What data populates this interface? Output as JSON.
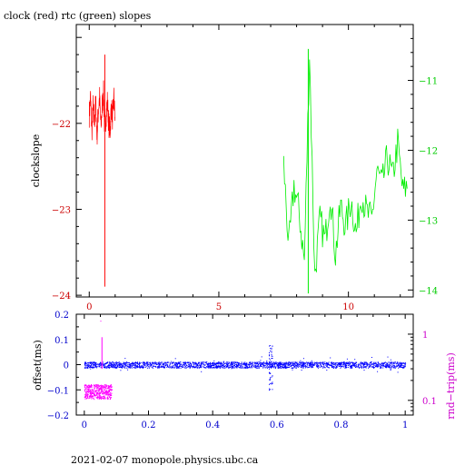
{
  "header": {
    "title": "clock (red) rtc (green) slopes"
  },
  "footer": {
    "text": "2021-02-07  monopole.physics.ubc.ca"
  },
  "colors": {
    "clock": "#ff0000",
    "rtc": "#00ee00",
    "offset": "#0000ff",
    "rndtrip": "#ff00ff",
    "axis_top_left": "#cc0000",
    "axis_top_right": "#00cc00",
    "axis_bottom_left": "#0000cc",
    "axis_bottom_right": "#cc00cc"
  },
  "chart_data": [
    {
      "type": "line",
      "title": "clock (red) rtc (green) slopes",
      "xlabel": "",
      "ylabel": "clockslope",
      "y2label": "",
      "xlim": [
        -0.5,
        12.5
      ],
      "ylim": [
        -24.02,
        -20.85
      ],
      "y2lim": [
        -14.1,
        -10.2
      ],
      "x_ticks": [
        0,
        5,
        10
      ],
      "y_ticks": [
        -22,
        -23,
        -24
      ],
      "y2_ticks": [
        -11,
        -12,
        -13,
        -14
      ],
      "grid": false,
      "series": [
        {
          "name": "clock",
          "axis": "left",
          "x": [
            0.0,
            0.05,
            0.1,
            0.15,
            0.2,
            0.25,
            0.3,
            0.35,
            0.4,
            0.45,
            0.5,
            0.55,
            0.6,
            0.65,
            0.7,
            0.75,
            0.8,
            0.85,
            0.9,
            0.95,
            1.0
          ],
          "y": [
            -21.9,
            -21.7,
            -22.1,
            -21.8,
            -22.0,
            -21.75,
            -22.15,
            -21.85,
            -21.7,
            -22.05,
            -21.8,
            -21.65,
            -22.1,
            -21.9,
            -21.75,
            -22.0,
            -22.1,
            -21.8,
            -21.95,
            -21.7,
            -22.0
          ]
        },
        {
          "name": "rtc",
          "axis": "right",
          "x": [
            7.5,
            7.7,
            7.9,
            8.1,
            8.3,
            8.5,
            8.7,
            8.9,
            9.1,
            9.3,
            9.5,
            9.7,
            9.9,
            10.1,
            10.3,
            10.5,
            10.7,
            10.9,
            11.1,
            11.3,
            11.5,
            11.7,
            11.9,
            12.1,
            12.3
          ],
          "y": [
            -12.2,
            -13.4,
            -12.5,
            -12.9,
            -13.6,
            -10.6,
            -13.8,
            -13.0,
            -13.3,
            -12.6,
            -13.5,
            -12.8,
            -13.1,
            -12.7,
            -13.2,
            -12.6,
            -12.9,
            -13.0,
            -12.3,
            -12.5,
            -12.1,
            -12.4,
            -11.9,
            -12.6,
            -12.5
          ]
        }
      ]
    },
    {
      "type": "scatter",
      "xlabel": "",
      "ylabel": "offset(ms)",
      "y2label": "rnd−trip(ms)",
      "xlim": [
        -0.025,
        1.025
      ],
      "ylim": [
        -0.2,
        0.2
      ],
      "y2lim": [
        0.06,
        2.0
      ],
      "y2_scale": "log",
      "x_ticks": [
        0,
        0.2,
        0.4,
        0.6,
        0.8,
        1
      ],
      "y_ticks": [
        0.2,
        0.1,
        0,
        -0.1,
        -0.2
      ],
      "y2_ticks": [
        1,
        0.1
      ],
      "grid": false,
      "series": [
        {
          "name": "offset",
          "axis": "left",
          "baseline": 0.0,
          "spread": 0.012,
          "outliers_at_x": [
            0.575,
            0.578,
            0.582,
            0.585
          ],
          "outlier_range": [
            -0.1,
            0.08
          ]
        },
        {
          "name": "rnd-trip",
          "axis": "right",
          "x_range": [
            0.0,
            0.085
          ],
          "center": 0.14,
          "spike": 1.6
        }
      ]
    }
  ]
}
